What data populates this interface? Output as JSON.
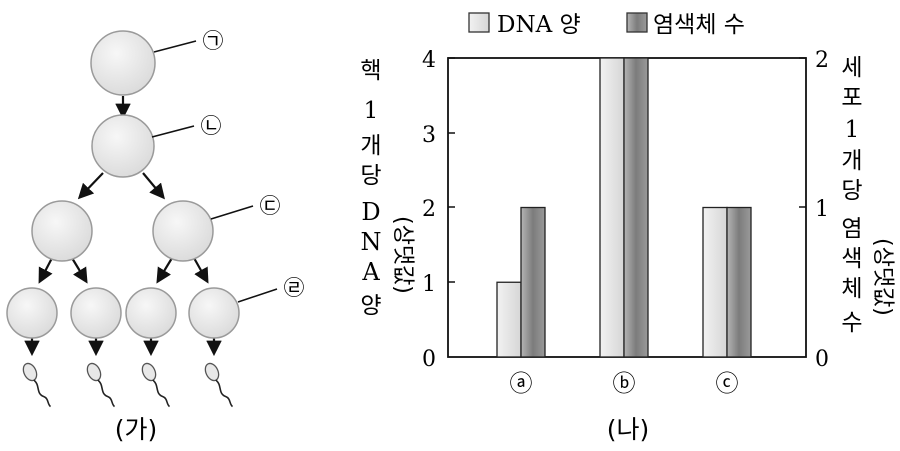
{
  "left_panel": {
    "caption": "(가)",
    "cell_labels": [
      "㉠",
      "㉡",
      "㉢",
      "㉣"
    ]
  },
  "right_panel": {
    "caption": "(나)",
    "legend": [
      "DNA 양",
      "염색체 수"
    ],
    "left_axis_label": [
      "핵",
      "1",
      "개",
      "당",
      "D",
      "N",
      "A",
      "양"
    ],
    "left_axis_unit": "(상댓값)",
    "right_axis_label": [
      "세",
      "포",
      "1",
      "개",
      "당",
      "염",
      "색",
      "체",
      "수"
    ],
    "right_axis_unit": "(상댓값)"
  },
  "chart_data": {
    "type": "bar",
    "categories": [
      "ⓐ",
      "ⓑ",
      "ⓒ"
    ],
    "series": [
      {
        "name": "DNA 양",
        "axis": "left",
        "values": [
          1,
          4,
          2
        ],
        "color": "#e6e6e6"
      },
      {
        "name": "염색체 수",
        "axis": "right",
        "values": [
          1,
          2,
          1
        ],
        "color": "#8a8a8a"
      }
    ],
    "left_ylim": [
      0,
      4
    ],
    "left_ticks": [
      "0",
      "1",
      "2",
      "3",
      "4"
    ],
    "right_ylim": [
      0,
      2
    ],
    "right_ticks": [
      "0",
      "1",
      "2"
    ],
    "grid": false,
    "legend_position": "top"
  }
}
